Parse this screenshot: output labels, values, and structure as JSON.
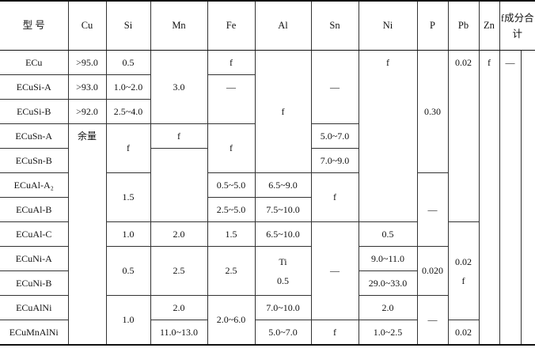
{
  "table": {
    "headers": [
      {
        "t": "型  号"
      },
      {
        "t": "Cu"
      },
      {
        "t": "Si"
      },
      {
        "t": "Mn"
      },
      {
        "t": "Fe"
      },
      {
        "t": "Al"
      },
      {
        "t": "Sn"
      },
      {
        "t": "Ni"
      },
      {
        "t": "P"
      },
      {
        "t": "Pb"
      },
      {
        "t": "Zn"
      },
      {
        "t": "f成分合计",
        "cs": 2
      }
    ],
    "rows": [
      [
        {
          "t": "ECu"
        },
        {
          "t": ">95.0"
        },
        {
          "t": "0.5"
        },
        {
          "t": "3.0",
          "rs": 3
        },
        {
          "t": "f"
        },
        {
          "t": "f",
          "rs": 5
        },
        {
          "t": "—",
          "rs": 3
        },
        {
          "t": "f",
          "rs": 7,
          "top": true
        },
        {
          "t": "0.30",
          "rs": 5
        },
        {
          "t": "0.02",
          "rs": 7,
          "top": true
        },
        {
          "t": "f",
          "rs": 12,
          "top": true
        },
        {
          "t": "—",
          "rs": 12,
          "top": true
        },
        {
          "t": "",
          "rs": 12
        }
      ],
      [
        {
          "t": "ECuSi-A"
        },
        {
          "t": ">93.0"
        },
        {
          "t": "1.0~2.0"
        },
        {
          "t": "—",
          "rs": 2,
          "top": true
        }
      ],
      [
        {
          "t": "ECuSi-B"
        },
        {
          "t": ">92.0"
        },
        {
          "t": "2.5~4.0"
        }
      ],
      [
        {
          "t": "ECuSn-A"
        },
        {
          "t": "余量",
          "rs": 9,
          "top": true
        },
        {
          "t": "f",
          "rs": 2
        },
        {
          "t": "f"
        },
        {
          "t": "f",
          "rs": 2
        },
        {
          "t": "5.0~7.0"
        }
      ],
      [
        {
          "t": "ECuSn-B"
        },
        {
          "t": "",
          "rs": 3
        },
        {
          "t": "7.0~9.0"
        }
      ],
      [
        {
          "t": "ECuAl-A₂"
        },
        {
          "t": "1.5",
          "rs": 2
        },
        {
          "t": "0.5~5.0"
        },
        {
          "t": "6.5~9.0"
        },
        {
          "t": "f",
          "rs": 2
        },
        {
          "t": "—",
          "rs": 3
        }
      ],
      [
        {
          "t": "ECuAl-B"
        },
        {
          "t": "2.5~5.0"
        },
        {
          "t": "7.5~10.0"
        }
      ],
      [
        {
          "t": "ECuAl-C"
        },
        {
          "t": "1.0"
        },
        {
          "t": "2.0"
        },
        {
          "t": "1.5"
        },
        {
          "t": "6.5~10.0"
        },
        {
          "t": "—",
          "rs": 4
        },
        {
          "t": "0.5"
        },
        {
          "t": "0.02\nf",
          "rs": 4
        }
      ],
      [
        {
          "t": "ECuNi-A"
        },
        {
          "t": "0.5",
          "rs": 2
        },
        {
          "t": "2.5",
          "rs": 2
        },
        {
          "t": "2.5",
          "rs": 2
        },
        {
          "t": "Ti\n0.5",
          "rs": 2
        },
        {
          "t": "9.0~11.0"
        },
        {
          "t": "0.020",
          "rs": 2
        }
      ],
      [
        {
          "t": "ECuNi-B"
        },
        {
          "t": "29.0~33.0"
        }
      ],
      [
        {
          "t": "ECuAlNi"
        },
        {
          "t": "1.0",
          "rs": 2
        },
        {
          "t": "2.0"
        },
        {
          "t": "2.0~6.0",
          "rs": 2
        },
        {
          "t": "7.0~10.0"
        },
        {
          "t": "2.0"
        },
        {
          "t": "—",
          "rs": 2
        }
      ],
      [
        {
          "t": "ECuMnAlNi"
        },
        {
          "t": "11.0~13.0"
        },
        {
          "t": "5.0~7.0"
        },
        {
          "t": "f"
        },
        {
          "t": "1.0~2.5"
        },
        {
          "t": "0.02"
        }
      ]
    ]
  }
}
